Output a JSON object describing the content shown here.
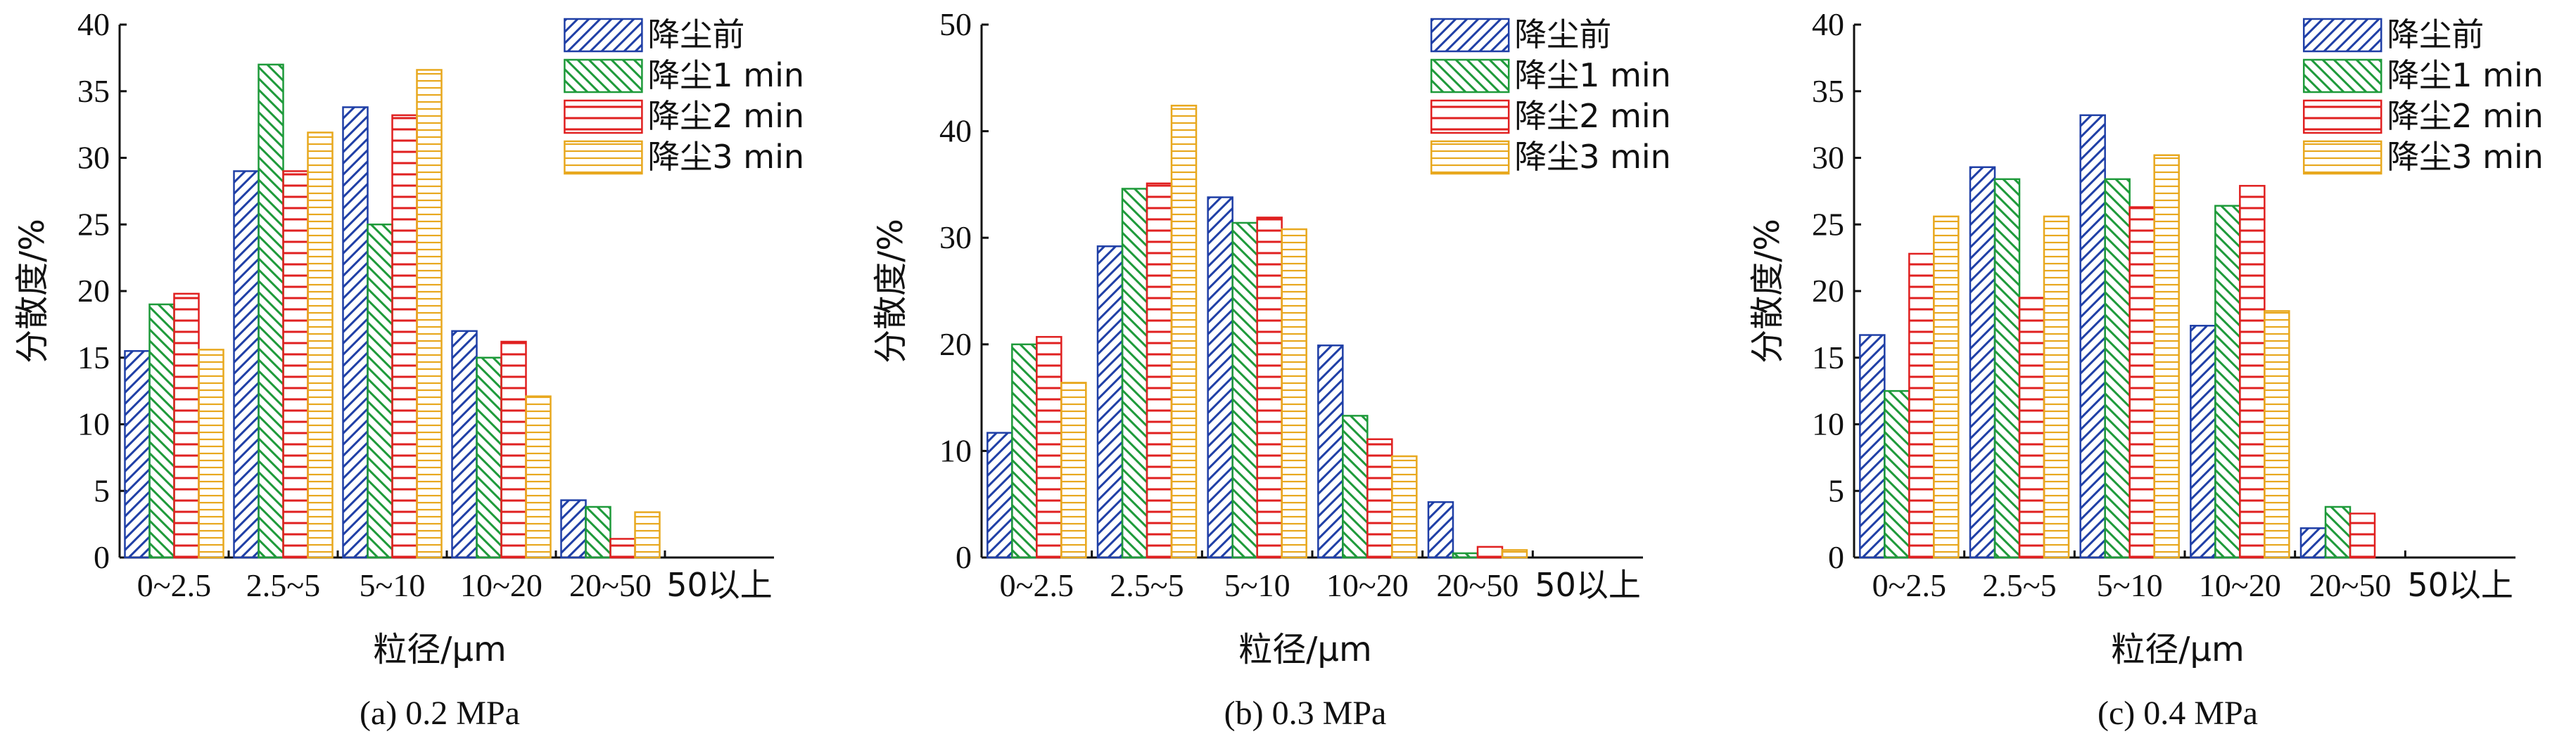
{
  "chart_data": [
    {
      "type": "bar",
      "caption": "(a) 0.2 MPa",
      "xlabel": "粒径/μm",
      "ylabel": "分散度/%",
      "ylim": [
        0,
        40
      ],
      "yticks": [
        0,
        5,
        10,
        15,
        20,
        25,
        30,
        35,
        40
      ],
      "categories": [
        "0~2.5",
        "2.5~5",
        "5~10",
        "10~20",
        "20~50",
        "50以上"
      ],
      "legend_position": "top-right",
      "grid": false,
      "series": [
        {
          "name": "降尘前",
          "values": [
            15.5,
            29.0,
            33.8,
            17.0,
            4.3,
            0
          ]
        },
        {
          "name": "降尘1 min",
          "values": [
            19.0,
            37.0,
            25.0,
            15.0,
            3.8,
            0
          ]
        },
        {
          "name": "降尘2 min",
          "values": [
            19.8,
            29.0,
            33.2,
            16.2,
            1.4,
            0
          ]
        },
        {
          "name": "降尘3 min",
          "values": [
            15.6,
            31.9,
            36.6,
            12.1,
            3.4,
            0
          ]
        }
      ]
    },
    {
      "type": "bar",
      "caption": "(b) 0.3 MPa",
      "xlabel": "粒径/μm",
      "ylabel": "分散度/%",
      "ylim": [
        0,
        50
      ],
      "yticks": [
        0,
        10,
        20,
        30,
        40,
        50
      ],
      "categories": [
        "0~2.5",
        "2.5~5",
        "5~10",
        "10~20",
        "20~50",
        "50以上"
      ],
      "legend_position": "top-right",
      "grid": false,
      "series": [
        {
          "name": "降尘前",
          "values": [
            11.7,
            29.2,
            33.8,
            19.9,
            5.2,
            0
          ]
        },
        {
          "name": "降尘1 min",
          "values": [
            20.0,
            34.6,
            31.4,
            13.3,
            0.4,
            0
          ]
        },
        {
          "name": "降尘2 min",
          "values": [
            20.7,
            35.1,
            31.9,
            11.1,
            1.0,
            0
          ]
        },
        {
          "name": "降尘3 min",
          "values": [
            16.4,
            42.4,
            30.8,
            9.5,
            0.7,
            0
          ]
        }
      ]
    },
    {
      "type": "bar",
      "caption": "(c) 0.4 MPa",
      "xlabel": "粒径/μm",
      "ylabel": "分散度/%",
      "ylim": [
        0,
        40
      ],
      "yticks": [
        0,
        5,
        10,
        15,
        20,
        25,
        30,
        35,
        40
      ],
      "categories": [
        "0~2.5",
        "2.5~5",
        "5~10",
        "10~20",
        "20~50",
        "50以上"
      ],
      "legend_position": "top-right",
      "grid": false,
      "series": [
        {
          "name": "降尘前",
          "values": [
            16.7,
            29.3,
            33.2,
            17.4,
            2.2,
            0
          ]
        },
        {
          "name": "降尘1 min",
          "values": [
            12.5,
            28.4,
            28.4,
            26.4,
            3.8,
            0
          ]
        },
        {
          "name": "降尘2 min",
          "values": [
            22.8,
            19.5,
            26.3,
            27.9,
            3.3,
            0
          ]
        },
        {
          "name": "降尘3 min",
          "values": [
            25.6,
            25.6,
            30.2,
            18.5,
            0,
            0
          ]
        }
      ]
    }
  ],
  "series_styles": [
    {
      "color": "#1f3fa6",
      "pattern": "diagonal-forward"
    },
    {
      "color": "#1e9a3a",
      "pattern": "diagonal-backward"
    },
    {
      "color": "#e02020",
      "pattern": "horizontal"
    },
    {
      "color": "#e8a81e",
      "pattern": "horizontal-dense"
    }
  ]
}
